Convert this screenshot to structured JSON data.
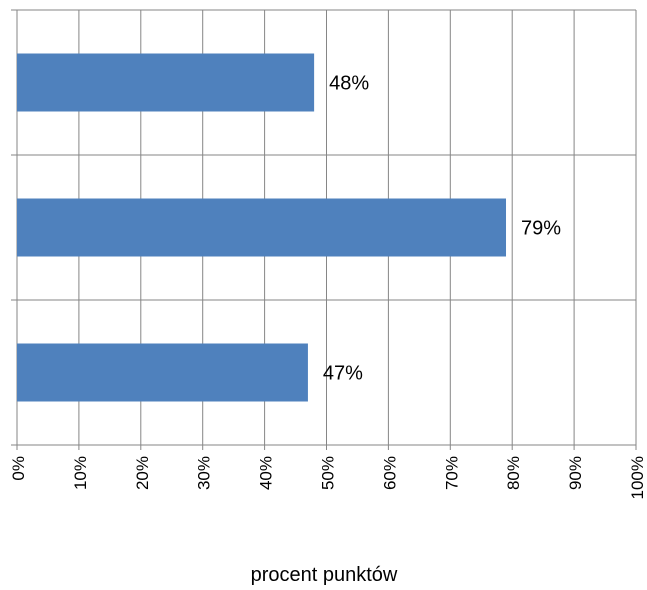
{
  "chart_data": {
    "type": "bar",
    "orientation": "horizontal",
    "title": "",
    "xlabel": "procent punktów",
    "ylabel": "",
    "xlim": [
      0,
      100
    ],
    "x_ticks": [
      "0%",
      "10%",
      "20%",
      "30%",
      "40%",
      "50%",
      "60%",
      "70%",
      "80%",
      "90%",
      "100%"
    ],
    "categories": [
      "",
      "",
      ""
    ],
    "values": [
      48,
      79,
      47
    ],
    "data_labels": [
      "48%",
      "79%",
      "47%"
    ],
    "grid": true,
    "legend": "none",
    "colors": {
      "bar": "#4F81BD",
      "grid": "#868686"
    }
  }
}
